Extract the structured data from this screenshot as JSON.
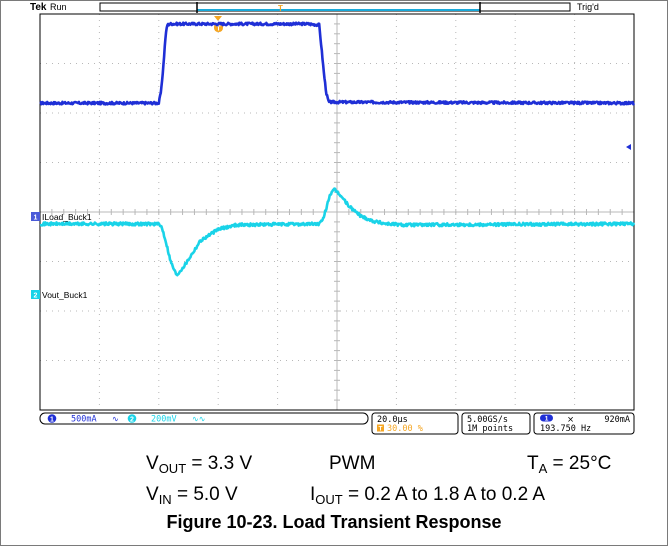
{
  "scope": {
    "brand": "Tek",
    "run_state": "Run",
    "trigger_state": "Trig'd",
    "trigger_marker": "T",
    "colors": {
      "ch1": "#1f2fd6",
      "ch2": "#19d3e8",
      "trigger": "#f5a623",
      "grid": "#b8b8b8"
    },
    "channels": [
      {
        "number": "1",
        "label": "ILoad_Buck1",
        "scale": "500mA",
        "coupling": "∿"
      },
      {
        "number": "2",
        "label": "Vout_Buck1",
        "scale": "200mV",
        "coupling": "∿∿"
      }
    ],
    "timebase": {
      "scale": "20.0µs",
      "trigger_icon": "T",
      "trigger_pos": "30.00 %"
    },
    "acquisition": {
      "rate": "5.00GS/s",
      "record": "1M points"
    },
    "trigger": {
      "source": "1",
      "slope": "⨯",
      "level": "920mA",
      "frequency": "193.750 Hz"
    }
  },
  "chart_data": {
    "type": "line",
    "title": "Figure 10-23. Load Transient Response",
    "x_unit": "divisions (20.0µs/div)",
    "xlim": [
      0,
      10
    ],
    "ylim": [
      0,
      8
    ],
    "grid": true,
    "series": [
      {
        "name": "ILoad_Buck1",
        "x": [
          0,
          2.0,
          2.04,
          2.08,
          2.11,
          2.14,
          2.2,
          4.5,
          4.7,
          4.74,
          4.78,
          4.82,
          4.86,
          10
        ],
        "y": [
          6.2,
          6.2,
          6.45,
          7.0,
          7.5,
          7.78,
          7.8,
          7.8,
          7.78,
          7.3,
          6.8,
          6.4,
          6.22,
          6.2
        ]
      },
      {
        "name": "Vout_Buck1",
        "x": [
          0,
          1.98,
          2.05,
          2.12,
          2.2,
          2.3,
          2.45,
          2.7,
          3.0,
          3.3,
          4.7,
          4.76,
          4.82,
          4.88,
          4.96,
          5.05,
          5.2,
          5.4,
          5.6,
          5.8,
          6.1,
          10
        ],
        "y": [
          3.76,
          3.76,
          3.7,
          3.4,
          3.0,
          2.72,
          2.95,
          3.42,
          3.65,
          3.74,
          3.76,
          3.83,
          4.08,
          4.35,
          4.45,
          4.35,
          4.12,
          3.92,
          3.82,
          3.77,
          3.74,
          3.76
        ]
      }
    ]
  },
  "caption": {
    "row1_left_main": "V",
    "row1_left_sub": "OUT",
    "row1_left_val": " = 3.3 V",
    "row1_mid": "PWM",
    "row1_right_main": "T",
    "row1_right_sub": "A",
    "row1_right_val": " = 25°C",
    "row2_left_main": "V",
    "row2_left_sub": "IN",
    "row2_left_val": " = 5.0 V",
    "row2_right_main": "I",
    "row2_right_sub": "OUT",
    "row2_right_val": " = 0.2 A to 1.8 A to 0.2 A"
  },
  "figure_title": "Figure 10-23. Load Transient Response"
}
